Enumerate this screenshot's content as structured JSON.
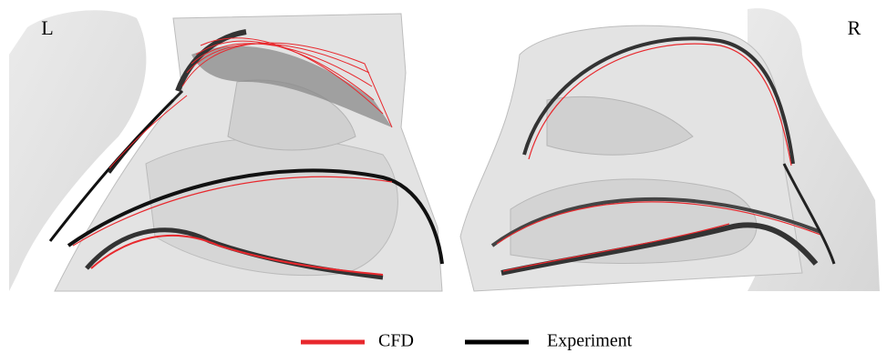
{
  "panels": [
    {
      "label": "L"
    },
    {
      "label": "R"
    }
  ],
  "legend": {
    "items": [
      {
        "name": "CFD",
        "color": "#e8282d"
      },
      {
        "name": "Experiment",
        "color": "#000000"
      }
    ]
  }
}
